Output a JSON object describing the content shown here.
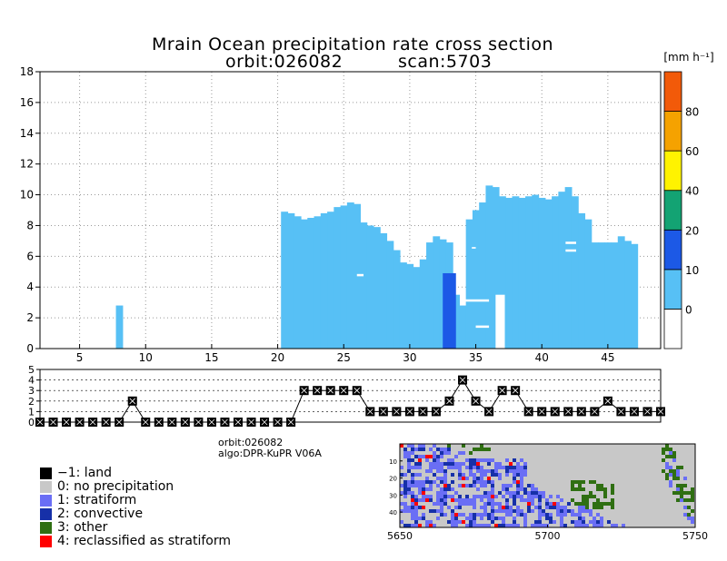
{
  "chart_data": [
    {
      "type": "heatmap",
      "title": "Mrain Ocean precipitation rate cross section",
      "subtitle_orbit": "orbit:026082",
      "subtitle_scan": "scan:5703",
      "x_range": [
        2,
        49
      ],
      "x_ticks": [
        "5",
        "10",
        "15",
        "20",
        "25",
        "30",
        "35",
        "40",
        "45"
      ],
      "y_range": [
        0,
        18
      ],
      "y_ticks": [
        "0",
        "2",
        "4",
        "6",
        "8",
        "10",
        "12",
        "14",
        "16",
        "18"
      ],
      "grid": true,
      "colorbar": {
        "unit_label": "[mm h⁻¹]",
        "ticks": [
          "0",
          "10",
          "20",
          "40",
          "60",
          "80"
        ],
        "colors": [
          "#ffffff",
          "#57c0f5",
          "#1c59e6",
          "#13a373",
          "#fff300",
          "#f5a200",
          "#f25a09"
        ]
      },
      "columns": [
        {
          "x": 7.5,
          "top": 0,
          "bottom": 0
        },
        {
          "x": 8,
          "top": 2.8,
          "bottom": 0
        },
        {
          "x": 20.5,
          "top": 8.9,
          "bottom": 0
        },
        {
          "x": 21,
          "top": 8.8,
          "bottom": 0
        },
        {
          "x": 21.5,
          "top": 8.6,
          "bottom": 0
        },
        {
          "x": 22,
          "top": 8.4,
          "bottom": 0
        },
        {
          "x": 22.5,
          "top": 8.5,
          "bottom": 0
        },
        {
          "x": 23,
          "top": 8.6,
          "bottom": 0
        },
        {
          "x": 23.5,
          "top": 8.8,
          "bottom": 0
        },
        {
          "x": 24,
          "top": 8.9,
          "bottom": 0
        },
        {
          "x": 24.5,
          "top": 9.2,
          "bottom": 0
        },
        {
          "x": 25,
          "top": 9.3,
          "bottom": 0
        },
        {
          "x": 25.5,
          "top": 9.5,
          "bottom": 0
        },
        {
          "x": 26,
          "top": 9.4,
          "bottom": 0
        },
        {
          "x": 26.5,
          "top": 8.2,
          "bottom": 0
        },
        {
          "x": 27,
          "top": 8.0,
          "bottom": 0
        },
        {
          "x": 27.5,
          "top": 7.9,
          "bottom": 0
        },
        {
          "x": 28,
          "top": 7.5,
          "bottom": 0
        },
        {
          "x": 28.5,
          "top": 7.0,
          "bottom": 0
        },
        {
          "x": 29,
          "top": 6.4,
          "bottom": 0
        },
        {
          "x": 29.5,
          "top": 5.6,
          "bottom": 0
        },
        {
          "x": 30,
          "top": 5.5,
          "bottom": 0
        },
        {
          "x": 30.5,
          "top": 5.3,
          "bottom": 0
        },
        {
          "x": 31,
          "top": 5.8,
          "bottom": 0
        },
        {
          "x": 31.5,
          "top": 6.9,
          "bottom": 0
        },
        {
          "x": 32,
          "top": 7.3,
          "bottom": 0
        },
        {
          "x": 32.5,
          "top": 7.1,
          "bottom": 0
        },
        {
          "x": 33,
          "top": 6.9,
          "bottom": 0
        },
        {
          "x": 33.5,
          "top": 3.5,
          "bottom": 0
        },
        {
          "x": 34,
          "top": 2.8,
          "bottom": 0
        },
        {
          "x": 34.5,
          "top": 8.4,
          "bottom": 0
        },
        {
          "x": 35,
          "top": 9.0,
          "bottom": 0
        },
        {
          "x": 35.5,
          "top": 9.5,
          "bottom": 0
        },
        {
          "x": 36,
          "top": 10.6,
          "bottom": 0
        },
        {
          "x": 36.5,
          "top": 10.5,
          "bottom": 0
        },
        {
          "x": 37,
          "top": 9.9,
          "bottom": 0
        },
        {
          "x": 37.5,
          "top": 9.8,
          "bottom": 0
        },
        {
          "x": 38,
          "top": 9.9,
          "bottom": 0
        },
        {
          "x": 38.5,
          "top": 9.8,
          "bottom": 0
        },
        {
          "x": 39,
          "top": 9.9,
          "bottom": 0
        },
        {
          "x": 39.5,
          "top": 10.0,
          "bottom": 0
        },
        {
          "x": 40,
          "top": 9.8,
          "bottom": 0
        },
        {
          "x": 40.5,
          "top": 9.7,
          "bottom": 0
        },
        {
          "x": 41,
          "top": 9.9,
          "bottom": 0
        },
        {
          "x": 41.5,
          "top": 10.2,
          "bottom": 0
        },
        {
          "x": 42,
          "top": 10.5,
          "bottom": 0
        },
        {
          "x": 42.5,
          "top": 9.9,
          "bottom": 0
        },
        {
          "x": 43,
          "top": 8.8,
          "bottom": 0
        },
        {
          "x": 43.5,
          "top": 8.4,
          "bottom": 0
        },
        {
          "x": 44,
          "top": 6.9,
          "bottom": 0
        },
        {
          "x": 44.5,
          "top": 6.9,
          "bottom": 0
        },
        {
          "x": 45,
          "top": 6.9,
          "bottom": 0
        },
        {
          "x": 45.5,
          "top": 6.9,
          "bottom": 0
        },
        {
          "x": 46,
          "top": 7.3,
          "bottom": 0
        },
        {
          "x": 46.5,
          "top": 7.0,
          "bottom": 0
        },
        {
          "x": 47,
          "top": 6.8,
          "bottom": 0
        }
      ],
      "convective_column": {
        "x_from": 32.5,
        "x_to": 33.5,
        "top": 4.9,
        "bottom": 0
      },
      "blocks": [
        {
          "x_from": 20.5,
          "x_to": 36.5,
          "y_from": 0,
          "y_to": 9.5
        },
        {
          "x_from": 37,
          "x_to": 49,
          "y_from": 0,
          "y_to": 10.6
        }
      ]
    },
    {
      "type": "line",
      "y_range": [
        0,
        5
      ],
      "y_ticks": [
        "0",
        "1",
        "2",
        "3",
        "4",
        "5"
      ],
      "x": [
        2,
        3,
        4,
        5,
        6,
        7,
        8,
        9,
        10,
        11,
        12,
        13,
        14,
        15,
        16,
        17,
        18,
        19,
        20,
        21,
        22,
        23,
        24,
        25,
        26,
        27,
        28,
        29,
        30,
        31,
        32,
        33,
        34,
        35,
        36,
        37,
        38,
        39,
        40,
        41,
        42,
        43,
        44,
        45,
        46,
        47,
        48,
        49
      ],
      "values": [
        0,
        0,
        0,
        0,
        0,
        0,
        0,
        2,
        0,
        0,
        0,
        0,
        0,
        0,
        0,
        0,
        0,
        0,
        0,
        0,
        3,
        3,
        3,
        3,
        3,
        1,
        1,
        1,
        1,
        1,
        1,
        2,
        4,
        2,
        1,
        3,
        3,
        1,
        1,
        1,
        1,
        1,
        1,
        2,
        1,
        1,
        1,
        1
      ]
    },
    {
      "type": "heatmap",
      "x_ticks": [
        "5650",
        "5700",
        "5750"
      ],
      "y_ticks": [
        "10",
        "20",
        "30",
        "40"
      ],
      "x_range": [
        5650,
        5750
      ],
      "y_range": [
        0,
        49
      ]
    }
  ],
  "info": {
    "orbit": "orbit:026082",
    "algo": "algo:DPR-KuPR V06A"
  },
  "legend": [
    {
      "label": "−1: land",
      "color": "#000000"
    },
    {
      "label": "0: no precipitation",
      "color": "#c8c8c8"
    },
    {
      "label": "1: stratiform",
      "color": "#6a6ef5"
    },
    {
      "label": "2: convective",
      "color": "#1630a8"
    },
    {
      "label": "3: other",
      "color": "#2f6f12"
    },
    {
      "label": "4: reclassified as stratiform",
      "color": "#ff0000"
    }
  ]
}
